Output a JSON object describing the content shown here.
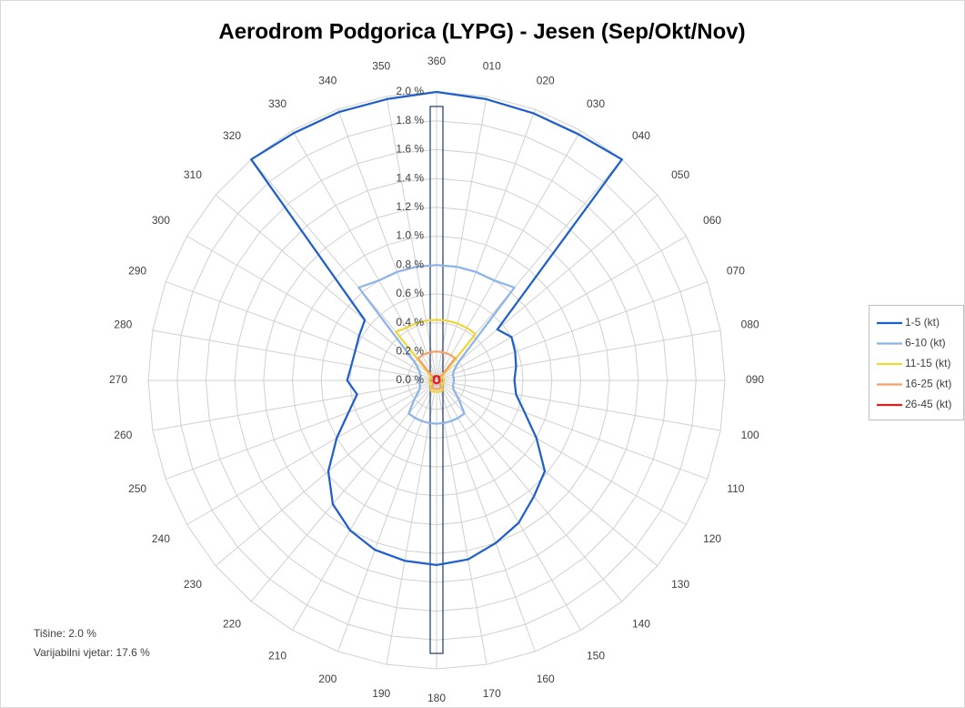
{
  "chart_data": {
    "type": "radar",
    "title": "Aerodrom Podgorica (LYPG) - Jesen (Sep/Okt/Nov)",
    "categories": [
      "360",
      "010",
      "020",
      "030",
      "040",
      "050",
      "060",
      "070",
      "080",
      "090",
      "100",
      "110",
      "120",
      "130",
      "140",
      "150",
      "160",
      "170",
      "180",
      "190",
      "200",
      "210",
      "220",
      "230",
      "240",
      "250",
      "260",
      "270",
      "280",
      "290",
      "300",
      "310",
      "320",
      "330",
      "340",
      "350"
    ],
    "ylim": [
      0,
      2.0
    ],
    "yticks": [
      {
        "value": 0.0,
        "label": "0.0 %"
      },
      {
        "value": 0.2,
        "label": "0.2 %"
      },
      {
        "value": 0.4,
        "label": "0.4 %"
      },
      {
        "value": 0.6,
        "label": "0.6 %"
      },
      {
        "value": 0.8,
        "label": "0.8 %"
      },
      {
        "value": 1.0,
        "label": "1.0 %"
      },
      {
        "value": 1.2,
        "label": "1.2 %"
      },
      {
        "value": 1.4,
        "label": "1.4 %"
      },
      {
        "value": 1.6,
        "label": "1.6 %"
      },
      {
        "value": 1.8,
        "label": "1.8 %"
      },
      {
        "value": 2.0,
        "label": "2.0 %"
      }
    ],
    "grid": true,
    "legend": "right",
    "series": [
      {
        "name": "1-5 (kt)",
        "color": "#1e5fcc",
        "values": [
          2.0,
          1.98,
          1.97,
          1.97,
          2.0,
          0.55,
          0.6,
          0.58,
          0.56,
          0.54,
          0.56,
          0.65,
          0.8,
          0.98,
          1.05,
          1.14,
          1.2,
          1.26,
          1.28,
          1.27,
          1.25,
          1.2,
          1.12,
          0.98,
          0.8,
          0.65,
          0.56,
          0.62,
          0.6,
          0.6,
          0.62,
          0.65,
          2.0,
          1.98,
          1.98,
          1.98
        ]
      },
      {
        "name": "6-10 (kt)",
        "color": "#8db4e8",
        "values": [
          0.8,
          0.8,
          0.8,
          0.8,
          0.84,
          0.2,
          0.14,
          0.12,
          0.12,
          0.12,
          0.12,
          0.12,
          0.14,
          0.2,
          0.3,
          0.3,
          0.3,
          0.3,
          0.3,
          0.3,
          0.3,
          0.3,
          0.3,
          0.2,
          0.14,
          0.12,
          0.12,
          0.12,
          0.12,
          0.12,
          0.14,
          0.2,
          0.84,
          0.8,
          0.8,
          0.8
        ]
      },
      {
        "name": "11-15 (kt)",
        "color": "#f0d63a",
        "values": [
          0.42,
          0.42,
          0.42,
          0.42,
          0.42,
          0.06,
          0.05,
          0.05,
          0.05,
          0.05,
          0.05,
          0.05,
          0.05,
          0.05,
          0.06,
          0.08,
          0.08,
          0.08,
          0.08,
          0.08,
          0.08,
          0.08,
          0.06,
          0.05,
          0.05,
          0.05,
          0.05,
          0.05,
          0.05,
          0.05,
          0.05,
          0.06,
          0.44,
          0.42,
          0.42,
          0.42
        ]
      },
      {
        "name": "16-25 (kt)",
        "color": "#f4a16a",
        "values": [
          0.2,
          0.2,
          0.2,
          0.2,
          0.2,
          0.03,
          0.03,
          0.03,
          0.03,
          0.03,
          0.03,
          0.03,
          0.03,
          0.03,
          0.04,
          0.06,
          0.06,
          0.06,
          0.06,
          0.06,
          0.06,
          0.06,
          0.04,
          0.03,
          0.03,
          0.03,
          0.03,
          0.03,
          0.03,
          0.03,
          0.03,
          0.03,
          0.2,
          0.2,
          0.2,
          0.2
        ]
      },
      {
        "name": "26-45 (kt)",
        "color": "#e02020",
        "values": [
          0.03,
          0.03,
          0.03,
          0.03,
          0.03,
          0.02,
          0.02,
          0.02,
          0.02,
          0.02,
          0.02,
          0.02,
          0.02,
          0.02,
          0.02,
          0.02,
          0.02,
          0.02,
          0.02,
          0.02,
          0.02,
          0.02,
          0.02,
          0.02,
          0.02,
          0.02,
          0.02,
          0.02,
          0.02,
          0.02,
          0.02,
          0.02,
          0.03,
          0.03,
          0.03,
          0.03
        ]
      }
    ],
    "annotations": [
      "Tišine: 2.0 %",
      "Varijabilni vjetar: 17.6 %"
    ]
  }
}
